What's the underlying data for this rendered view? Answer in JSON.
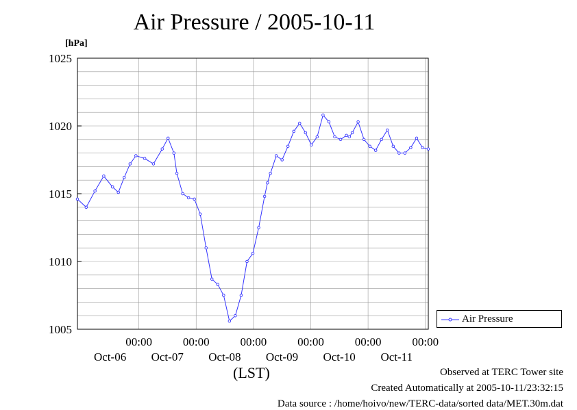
{
  "chart_data": {
    "type": "line",
    "title": "Air Pressure / 2005-10-11",
    "ylabel": "[hPa]",
    "xlabel": "(LST)",
    "ylim": [
      1005,
      1025
    ],
    "xlim_days": [
      0,
      6
    ],
    "y_ticks": [
      "1005",
      "1010",
      "1015",
      "1020",
      "1025"
    ],
    "x_ticks": [
      {
        "time": "00:00",
        "date": "Oct-06"
      },
      {
        "time": "00:00",
        "date": "Oct-07"
      },
      {
        "time": "00:00",
        "date": "Oct-08"
      },
      {
        "time": "00:00",
        "date": "Oct-09"
      },
      {
        "time": "00:00",
        "date": "Oct-10"
      },
      {
        "time": "00:00",
        "date": "Oct-11"
      }
    ],
    "grid": true,
    "legend_position": "right, beside plot",
    "series": [
      {
        "name": "Air Pressure",
        "color": "#3333ff",
        "x": [
          0.0,
          0.15,
          0.3,
          0.45,
          0.6,
          0.7,
          0.8,
          0.9,
          1.0,
          1.15,
          1.3,
          1.45,
          1.55,
          1.65,
          1.7,
          1.8,
          1.9,
          2.0,
          2.1,
          2.2,
          2.3,
          2.4,
          2.5,
          2.6,
          2.7,
          2.8,
          2.9,
          3.0,
          3.1,
          3.2,
          3.25,
          3.3,
          3.4,
          3.5,
          3.6,
          3.7,
          3.8,
          3.9,
          4.0,
          4.1,
          4.2,
          4.3,
          4.4,
          4.5,
          4.6,
          4.65,
          4.7,
          4.8,
          4.9,
          5.0,
          5.1,
          5.2,
          5.3,
          5.4,
          5.5,
          5.6,
          5.7,
          5.8,
          5.9,
          6.0
        ],
        "y": [
          1014.6,
          1014.0,
          1015.2,
          1016.3,
          1015.5,
          1015.1,
          1016.2,
          1017.2,
          1017.8,
          1017.6,
          1017.2,
          1018.3,
          1019.1,
          1018.0,
          1016.5,
          1015.0,
          1014.7,
          1014.6,
          1013.5,
          1011.0,
          1008.7,
          1008.3,
          1007.5,
          1005.6,
          1006.0,
          1007.5,
          1010.0,
          1010.6,
          1012.5,
          1014.8,
          1015.8,
          1016.5,
          1017.8,
          1017.5,
          1018.5,
          1019.6,
          1020.2,
          1019.5,
          1018.6,
          1019.2,
          1020.8,
          1020.3,
          1019.2,
          1019.0,
          1019.3,
          1019.2,
          1019.5,
          1020.3,
          1019.0,
          1018.5,
          1018.2,
          1019.0,
          1019.7,
          1018.5,
          1018.0,
          1018.0,
          1018.4,
          1019.1,
          1018.4,
          1018.3
        ]
      }
    ]
  },
  "footer": {
    "line1": "Observed at TERC Tower site",
    "line2": "Created Automatically at 2005-10-11/23:32:15",
    "line3": "Data source : /home/hoivo/new/TERC-data/sorted  data/MET.30m.dat"
  }
}
